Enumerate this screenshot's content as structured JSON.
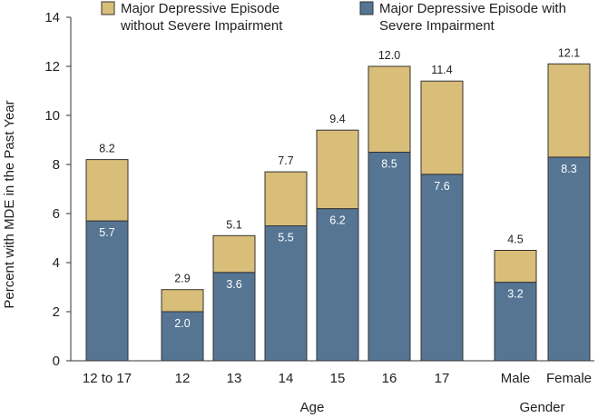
{
  "chart_data": {
    "type": "bar",
    "stacked": true,
    "categories": [
      "12 to 17",
      "12",
      "13",
      "14",
      "15",
      "16",
      "17",
      "Male",
      "Female"
    ],
    "groups": [
      {
        "label": "Age",
        "categories": [
          "12",
          "13",
          "14",
          "15",
          "16",
          "17"
        ]
      },
      {
        "label": "Gender",
        "categories": [
          "Male",
          "Female"
        ]
      }
    ],
    "series": [
      {
        "name": "Major Depressive Episode with Severe Impairment",
        "color": "#557593",
        "values": [
          5.7,
          2.0,
          3.6,
          5.5,
          6.2,
          8.5,
          7.6,
          3.2,
          8.3
        ]
      },
      {
        "name": "Major Depressive Episode without Severe Impairment",
        "color": "#D9BE79",
        "values": [
          2.5,
          0.9,
          1.5,
          2.2,
          3.2,
          3.5,
          3.8,
          1.3,
          3.8
        ]
      }
    ],
    "segment_labels": [
      "5.7",
      "2.0",
      "3.6",
      "5.5",
      "6.2",
      "8.5",
      "7.6",
      "3.2",
      "8.3"
    ],
    "totals": [
      8.2,
      2.9,
      5.1,
      7.7,
      9.4,
      12.0,
      11.4,
      4.5,
      12.1
    ],
    "total_labels": [
      "8.2",
      "2.9",
      "5.1",
      "7.7",
      "9.4",
      "12.0",
      "11.4",
      "4.5",
      "12.1"
    ],
    "ylabel": "Percent with MDE in the Past Year",
    "xlabel": "",
    "ylim": [
      0,
      14
    ],
    "yticks": [
      "0",
      "2",
      "4",
      "6",
      "8",
      "10",
      "12",
      "14"
    ],
    "grid": false,
    "legend": {
      "placement": "top",
      "items": [
        {
          "line1": "Major Depressive Episode",
          "line2": "without Severe Impairment",
          "color": "#D9BE79"
        },
        {
          "line1": "Major Depressive Episode with",
          "line2": "Severe Impairment",
          "color": "#557593"
        }
      ]
    }
  }
}
